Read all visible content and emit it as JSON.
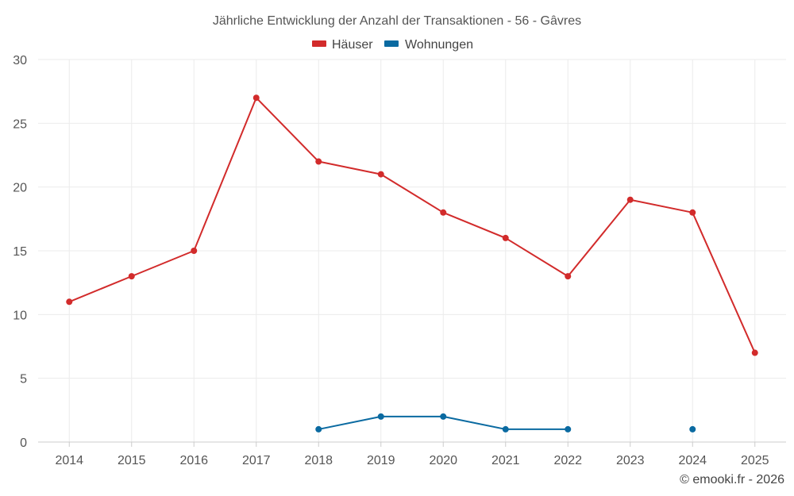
{
  "chart_data": {
    "type": "line",
    "title": "Jährliche Entwicklung der Anzahl der Transaktionen - 56 - Gâvres",
    "categories": [
      "2014",
      "2015",
      "2016",
      "2017",
      "2018",
      "2019",
      "2020",
      "2021",
      "2022",
      "2023",
      "2024",
      "2025"
    ],
    "series": [
      {
        "name": "Häuser",
        "color": "#d22b2b",
        "values": [
          11,
          13,
          15,
          27,
          22,
          21,
          18,
          16,
          13,
          19,
          18,
          7
        ]
      },
      {
        "name": "Wohnungen",
        "color": "#0a6aa1",
        "values": [
          null,
          null,
          null,
          null,
          1,
          2,
          2,
          1,
          1,
          null,
          1,
          null
        ]
      }
    ],
    "ylim": [
      0,
      30
    ],
    "yticks": [
      0,
      5,
      10,
      15,
      20,
      25,
      30
    ],
    "xlabel": "",
    "ylabel": "",
    "grid": true,
    "legend": "top-center"
  },
  "credit": "© emooki.fr - 2026"
}
